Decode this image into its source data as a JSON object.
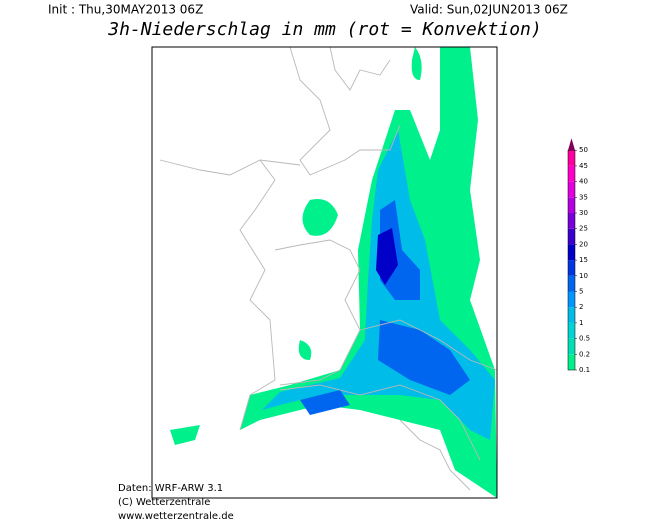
{
  "header": {
    "init": "Init : Thu,30MAY2013 06Z",
    "valid": "Valid: Sun,02JUN2013 06Z",
    "title": "3h-Niederschlag in mm (rot = Konvektion)"
  },
  "legend": {
    "levels": [
      0.1,
      0.2,
      0.5,
      1,
      2,
      5,
      10,
      15,
      20,
      25,
      30,
      35,
      40,
      45,
      50
    ],
    "colors": [
      "#00f08c",
      "#00e0b4",
      "#00d4d4",
      "#00bce8",
      "#0096ff",
      "#0066f0",
      "#0036e0",
      "#0000c8",
      "#3c00cc",
      "#7800d8",
      "#b400e0",
      "#e000e0",
      "#ff00c8",
      "#ff00a0"
    ],
    "top_color": "#80005a"
  },
  "footer": {
    "lines": [
      "Daten: WRF-ARW 3.1",
      "(C) Wetterzentrale",
      "www.wetterzentrale.de"
    ]
  }
}
